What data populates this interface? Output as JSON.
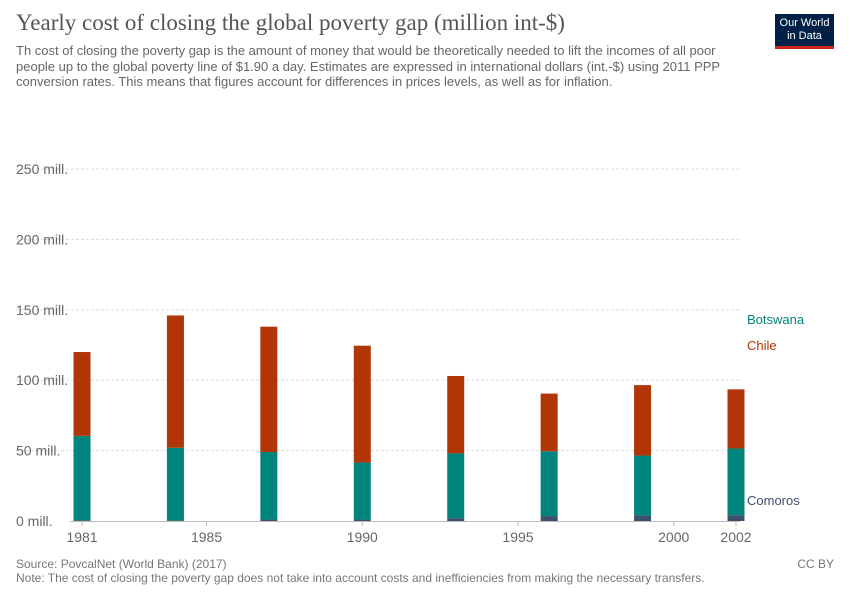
{
  "header": {
    "title": "Yearly cost of closing the global poverty gap (million int-$)",
    "subtitle": "Th cost of closing the poverty gap is the amount of money that would be theoretically needed to lift the incomes of all poor people up to the global poverty line of $1.90 a day. Estimates are expressed in international dollars (int.-$) using 2011 PPP conversion rates. This means that figures account for differences in prices levels, as well as for inflation.",
    "logo_line1": "Our World",
    "logo_line2": "in Data"
  },
  "footer": {
    "source": "Source: PovcalNet (World Bank) (2017)",
    "note": "Note: The cost of closing the poverty gap does not take into account costs and inefficiencies from making the necessary transfers.",
    "license": "CC BY"
  },
  "chart_data": {
    "type": "bar",
    "stacked": true,
    "x": [
      1981,
      1984,
      1987,
      1990,
      1993,
      1996,
      1999,
      2002
    ],
    "xticks": [
      1981,
      1985,
      1990,
      1995,
      2000,
      2002
    ],
    "xtick_labels": [
      "1981",
      "1985",
      "1990",
      "1995",
      "2000",
      "2002"
    ],
    "xlim": [
      1981,
      2002
    ],
    "ylim": [
      0,
      250
    ],
    "yticks": [
      0,
      50,
      100,
      150,
      200,
      250
    ],
    "ytick_labels": [
      "0 mill.",
      "50 mill.",
      "100 mill.",
      "150 mill.",
      "200 mill.",
      "250 mill."
    ],
    "grid": true,
    "series": [
      {
        "name": "Comoros",
        "color": "#3d4f6b",
        "values": [
          0.5,
          0.5,
          1,
          1,
          2,
          3.5,
          4,
          4
        ]
      },
      {
        "name": "Botswana",
        "color": "#00847e",
        "values": [
          60,
          51.5,
          48,
          40.5,
          46,
          46,
          42.5,
          47.5
        ]
      },
      {
        "name": "Chile",
        "color": "#b13507",
        "values": [
          59.5,
          94,
          89,
          83,
          55,
          41,
          50,
          42
        ]
      }
    ]
  }
}
